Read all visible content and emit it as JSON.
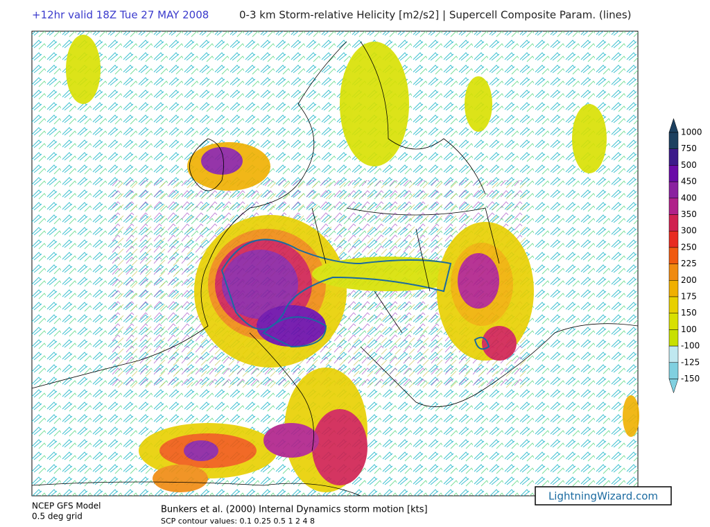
{
  "header": {
    "valid": "+12hr valid 18Z Tue 27 MAY 2008",
    "title": "0-3 km Storm-relative Helicity [m2/s2] | Supercell Composite Param. (lines)"
  },
  "colorbar": {
    "labels": [
      "1000",
      "750",
      "500",
      "450",
      "400",
      "350",
      "300",
      "250",
      "225",
      "200",
      "175",
      "150",
      "100",
      "-100",
      "-125",
      "-150"
    ],
    "colors": [
      "#1c4060",
      "#3c1a8a",
      "#6a0aa8",
      "#8a20a0",
      "#b0208a",
      "#d02050",
      "#e82a20",
      "#f05a10",
      "#f08a10",
      "#f0b000",
      "#e8d000",
      "#d8e000",
      "#c8e000",
      "#ffffff",
      "#c0e8f0",
      "#80d0e0"
    ]
  },
  "footer": {
    "model": "NCEP GFS Model",
    "grid": "0.5 deg grid",
    "motion": "Bunkers et al. (2000) Internal Dynamics storm motion [kts]",
    "contours": "SCP contour values: 0.1 0.25 0.5 1 2 4 8"
  },
  "brand": "LightningWizard.com"
}
